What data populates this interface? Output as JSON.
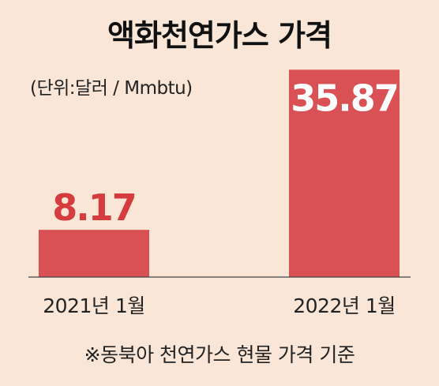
{
  "chart_data": {
    "type": "bar",
    "title": "액화천연가스 가격",
    "unit_label": "(단위:달러 / Mmbtu)",
    "categories": [
      "2021년 1월",
      "2022년 1월"
    ],
    "values": [
      8.17,
      35.87
    ],
    "value_labels": [
      "8.17",
      "35.87"
    ],
    "ylim": [
      0,
      37
    ],
    "grid": false,
    "footnote": "※동북아 천연가스 현물 가격 기준",
    "colors": {
      "bar": "#d95154",
      "background": "#f9e6d6",
      "value_text_outside": "#d63c3e",
      "value_text_inside": "#ffffff"
    }
  }
}
